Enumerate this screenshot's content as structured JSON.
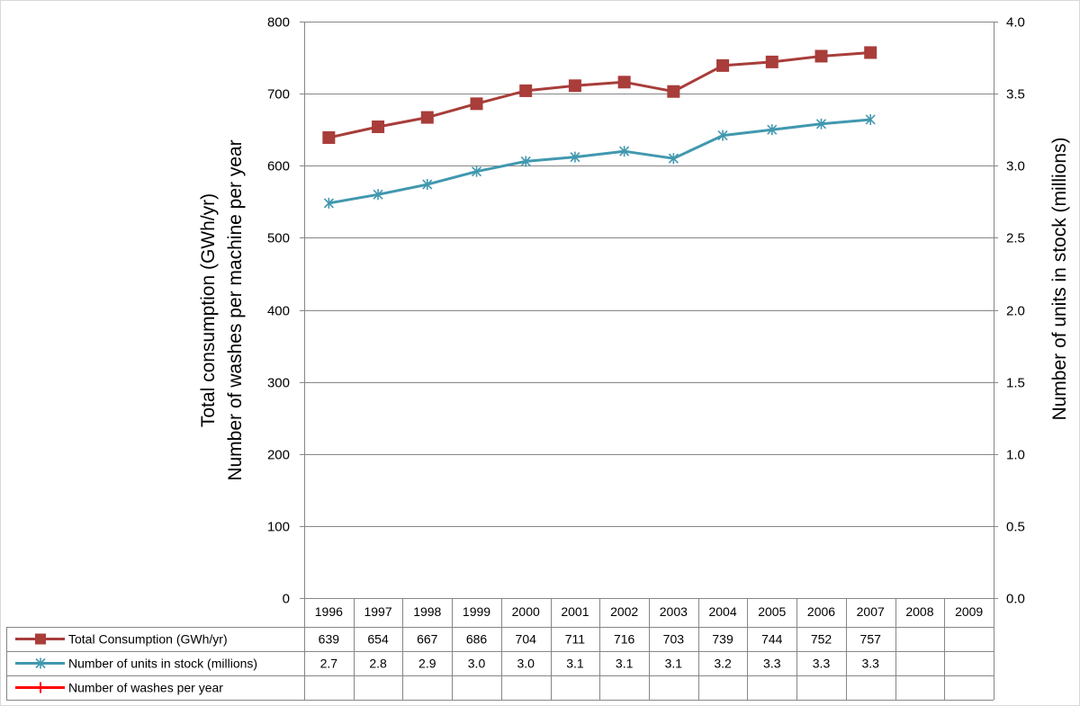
{
  "chart_data": {
    "type": "line",
    "categories": [
      "1996",
      "1997",
      "1998",
      "1999",
      "2000",
      "2001",
      "2002",
      "2003",
      "2004",
      "2005",
      "2006",
      "2007",
      "2008",
      "2009"
    ],
    "y_left": {
      "label_line1": "Total consumption (GWh/yr)",
      "label_line2": "Number of washes per machine per year",
      "ylim": [
        0,
        800
      ],
      "ticks": [
        "0",
        "100",
        "200",
        "300",
        "400",
        "500",
        "600",
        "700",
        "800"
      ]
    },
    "y_right": {
      "label": "Number of units in stock (millions)",
      "ylim": [
        0.0,
        4.0
      ],
      "ticks": [
        "0.0",
        "0.5",
        "1.0",
        "1.5",
        "2.0",
        "2.5",
        "3.0",
        "3.5",
        "4.0"
      ]
    },
    "grid": true,
    "legend": "data-table",
    "series": [
      {
        "name": "Total Consumption (GWh/yr)",
        "axis": "left",
        "color": "#A83D3A",
        "marker": "square",
        "values": [
          639,
          654,
          667,
          686,
          704,
          711,
          716,
          703,
          739,
          744,
          752,
          757,
          null,
          null
        ],
        "table_values": [
          "639",
          "654",
          "667",
          "686",
          "704",
          "711",
          "716",
          "703",
          "739",
          "744",
          "752",
          "757",
          "",
          ""
        ]
      },
      {
        "name": "Number of units in stock (millions)",
        "axis": "right",
        "color": "#4198AF",
        "marker": "asterisk",
        "values": [
          2.74,
          2.8,
          2.87,
          2.96,
          3.03,
          3.06,
          3.1,
          3.05,
          3.21,
          3.25,
          3.29,
          3.32,
          null,
          null
        ],
        "table_values": [
          "2.7",
          "2.8",
          "2.9",
          "3.0",
          "3.0",
          "3.1",
          "3.1",
          "3.1",
          "3.2",
          "3.3",
          "3.3",
          "3.3",
          "",
          ""
        ]
      },
      {
        "name": "Number of washes per year",
        "axis": "left",
        "color": "#FF0000",
        "marker": "plus",
        "values": [
          null,
          null,
          null,
          null,
          null,
          null,
          null,
          null,
          null,
          null,
          null,
          null,
          null,
          null
        ],
        "table_values": [
          "",
          "",
          "",
          "",
          "",
          "",
          "",
          "",
          "",
          "",
          "",
          "",
          "",
          ""
        ]
      }
    ]
  }
}
